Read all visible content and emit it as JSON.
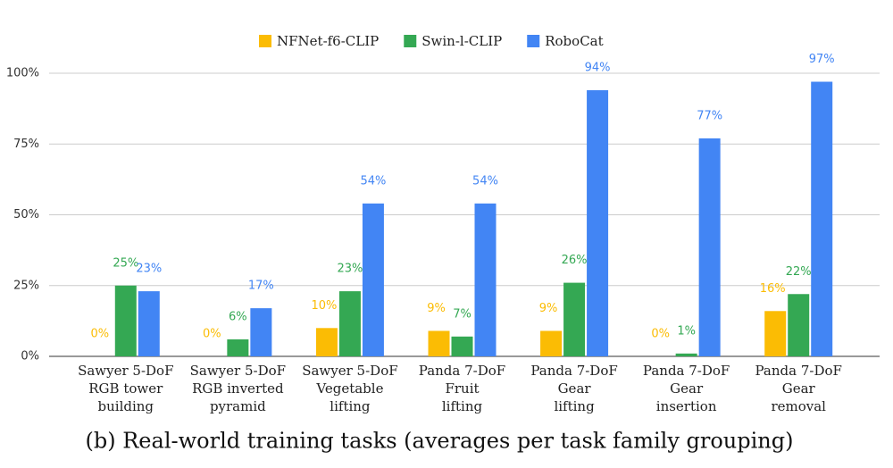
{
  "chart_data": {
    "type": "bar",
    "caption": "(b) Real-world training tasks (averages per task family grouping)",
    "categories": [
      [
        "Sawyer 5-DoF",
        "RGB tower",
        "building"
      ],
      [
        "Sawyer 5-DoF",
        "RGB inverted",
        "pyramid"
      ],
      [
        "Sawyer 5-DoF",
        "Vegetable",
        "lifting"
      ],
      [
        "Panda 7-DoF",
        "Fruit",
        "lifting"
      ],
      [
        "Panda 7-DoF",
        "Gear",
        "lifting"
      ],
      [
        "Panda 7-DoF",
        "Gear",
        "insertion"
      ],
      [
        "Panda 7-DoF",
        "Gear",
        "removal"
      ]
    ],
    "series": [
      {
        "name": "NFNet-f6-CLIP",
        "color": "#fbbc04",
        "values": [
          0,
          0,
          10,
          9,
          9,
          0,
          16
        ],
        "value_labels": [
          "0%",
          "0%",
          "10%",
          "9%",
          "9%",
          "0%",
          "16%"
        ]
      },
      {
        "name": "Swin-l-CLIP",
        "color": "#34a853",
        "values": [
          25,
          6,
          23,
          7,
          26,
          1,
          22
        ],
        "value_labels": [
          "25%",
          "6%",
          "23%",
          "7%",
          "26%",
          "1%",
          "22%"
        ]
      },
      {
        "name": "RoboCat",
        "color": "#4285f4",
        "values": [
          23,
          17,
          54,
          54,
          94,
          77,
          97
        ],
        "value_labels": [
          "23%",
          "17%",
          "54%",
          "54%",
          "94%",
          "77%",
          "97%"
        ]
      }
    ],
    "ylim": [
      0,
      100
    ],
    "yticks": [
      {
        "value": 0,
        "label": "0%"
      },
      {
        "value": 25,
        "label": "25%"
      },
      {
        "value": 50,
        "label": "50%"
      },
      {
        "value": 75,
        "label": "75%"
      },
      {
        "value": 100,
        "label": "100%"
      }
    ],
    "grid": true
  }
}
